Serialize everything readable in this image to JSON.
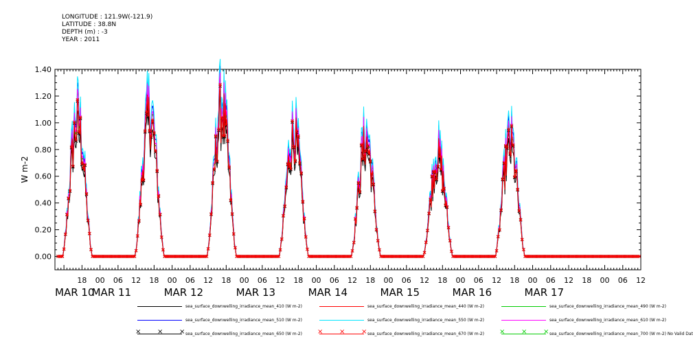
{
  "header": {
    "longitude": "LONGITUDE : 121.9W(-121.9)",
    "latitude": "LATITUDE : 38.8N",
    "depth": "DEPTH (m) : -3",
    "year": "YEAR : 2011"
  },
  "colors": {
    "410": "#000000",
    "440": "#ff0000",
    "490": "#00cc00",
    "510": "#0000ff",
    "550": "#00e5ff",
    "610": "#ff00ff",
    "650": "#000000",
    "670": "#ff0000",
    "700": "#00cc00"
  },
  "legend": [
    {
      "label": "sea_surface_downwelling_irradiance_mean_410 (W m-2)",
      "color": "#000000",
      "marker": false
    },
    {
      "label": "sea_surface_downwelling_irradiance_mean_440 (W m-2)",
      "color": "#ff0000",
      "marker": false
    },
    {
      "label": "sea_surface_downwelling_irradiance_mean_490 (W m-2)",
      "color": "#00cc00",
      "marker": false
    },
    {
      "label": "sea_surface_downwelling_irradiance_mean_510 (W m-2)",
      "color": "#0000ff",
      "marker": false
    },
    {
      "label": "sea_surface_downwelling_irradiance_mean_550 (W m-2)",
      "color": "#00e5ff",
      "marker": false
    },
    {
      "label": "sea_surface_downwelling_irradiance_mean_610 (W m-2)",
      "color": "#ff00ff",
      "marker": false
    },
    {
      "label": "sea_surface_downwelling_irradiance_mean_650 (W m-2)",
      "color": "#000000",
      "marker": true
    },
    {
      "label": "sea_surface_downwelling_irradiance_mean_670 (W m-2)",
      "color": "#ff0000",
      "marker": true
    },
    {
      "label": "sea_surface_downwelling_irradiance_mean_700 (W m-2) No Valid Data",
      "color": "#00cc00",
      "marker": true
    }
  ],
  "chart_data": {
    "type": "line",
    "ylabel": "W m-2",
    "ylim": [
      -0.1,
      1.4
    ],
    "xlim_hours": [
      -15,
      180
    ],
    "yticks": [
      "0.00",
      "0.20",
      "0.40",
      "0.60",
      "0.80",
      "1.00",
      "1.20",
      "1.40"
    ],
    "x_hour_ticks": [
      {
        "t": -6,
        "label": "18"
      },
      {
        "t": 0,
        "label": "00"
      },
      {
        "t": 6,
        "label": "06"
      },
      {
        "t": 12,
        "label": "12"
      },
      {
        "t": 18,
        "label": "18"
      },
      {
        "t": 24,
        "label": "00"
      },
      {
        "t": 30,
        "label": "06"
      },
      {
        "t": 36,
        "label": "12"
      },
      {
        "t": 42,
        "label": "18"
      },
      {
        "t": 48,
        "label": "00"
      },
      {
        "t": 54,
        "label": "06"
      },
      {
        "t": 60,
        "label": "12"
      },
      {
        "t": 66,
        "label": "18"
      },
      {
        "t": 72,
        "label": "00"
      },
      {
        "t": 78,
        "label": "06"
      },
      {
        "t": 84,
        "label": "12"
      },
      {
        "t": 90,
        "label": "18"
      },
      {
        "t": 96,
        "label": "00"
      },
      {
        "t": 102,
        "label": "06"
      },
      {
        "t": 108,
        "label": "12"
      },
      {
        "t": 114,
        "label": "18"
      },
      {
        "t": 120,
        "label": "00"
      },
      {
        "t": 126,
        "label": "06"
      },
      {
        "t": 132,
        "label": "12"
      },
      {
        "t": 138,
        "label": "18"
      },
      {
        "t": 144,
        "label": "00"
      },
      {
        "t": 150,
        "label": "06"
      },
      {
        "t": 156,
        "label": "12"
      },
      {
        "t": 162,
        "label": "18"
      },
      {
        "t": 168,
        "label": "00"
      },
      {
        "t": 174,
        "label": "06"
      },
      {
        "t": 180,
        "label": "12"
      }
    ],
    "x_day_labels": [
      {
        "t": -15,
        "label": "MAR 10"
      },
      {
        "t": 0,
        "label": "MAR 11"
      },
      {
        "t": 24,
        "label": "MAR 12"
      },
      {
        "t": 48,
        "label": "MAR 13"
      },
      {
        "t": 72,
        "label": "MAR 14"
      },
      {
        "t": 96,
        "label": "MAR 15"
      },
      {
        "t": 120,
        "label": "MAR 16"
      },
      {
        "t": 144,
        "label": "MAR 17"
      }
    ],
    "days": [
      {
        "rise": -12.5,
        "set": -2.5,
        "peak": 1.05
      },
      {
        "rise": 11.5,
        "set": 21.5,
        "peak": 1.1
      },
      {
        "rise": 35.5,
        "set": 45.5,
        "peak": 1.15
      },
      {
        "rise": 59.5,
        "set": 69.5,
        "peak": 0.95
      },
      {
        "rise": 83.5,
        "set": 93.5,
        "peak": 0.9
      },
      {
        "rise": 107.5,
        "set": 117.5,
        "peak": 0.78
      },
      {
        "rise": 131.5,
        "set": 141.5,
        "peak": 0.88
      }
    ],
    "series": [
      {
        "name": "sea_surface_downwelling_irradiance_mean_410 (W m-2)",
        "color": "#000000",
        "scale": 0.94,
        "marker": false
      },
      {
        "name": "sea_surface_downwelling_irradiance_mean_440 (W m-2)",
        "color": "#ff0000",
        "scale": 1.02,
        "marker": false
      },
      {
        "name": "sea_surface_downwelling_irradiance_mean_490 (W m-2)",
        "color": "#00cc00",
        "scale": 1.06,
        "marker": false
      },
      {
        "name": "sea_surface_downwelling_irradiance_mean_510 (W m-2)",
        "color": "#0000ff",
        "scale": 1.12,
        "marker": false
      },
      {
        "name": "sea_surface_downwelling_irradiance_mean_550 (W m-2)",
        "color": "#00e5ff",
        "scale": 1.16,
        "marker": false
      },
      {
        "name": "sea_surface_downwelling_irradiance_mean_610 (W m-2)",
        "color": "#ff00ff",
        "scale": 1.08,
        "marker": false
      },
      {
        "name": "sea_surface_downwelling_irradiance_mean_650 (W m-2)",
        "color": "#000000",
        "scale": 1.0,
        "marker": true
      },
      {
        "name": "sea_surface_downwelling_irradiance_mean_670 (W m-2)",
        "color": "#ff0000",
        "scale": 1.01,
        "marker": true
      }
    ]
  }
}
